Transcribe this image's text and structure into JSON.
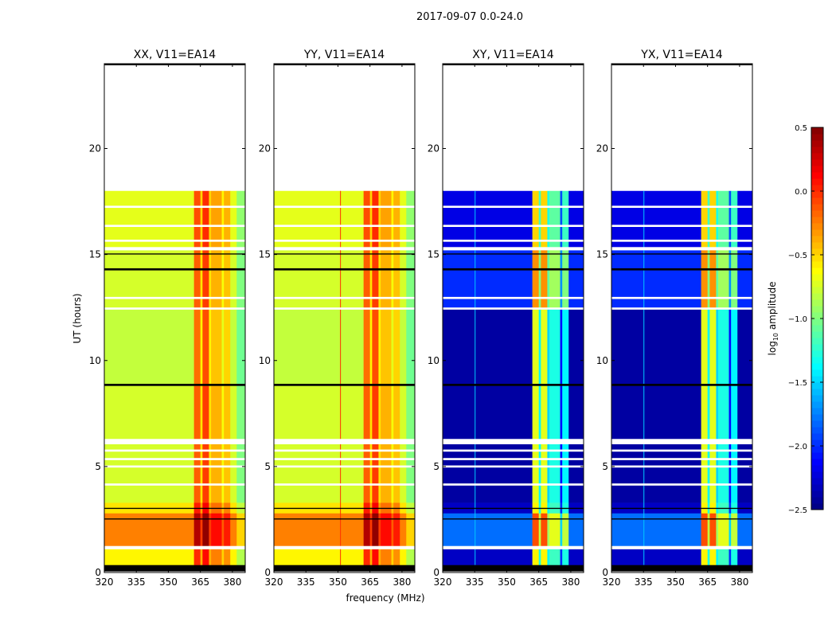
{
  "chart_data": {
    "type": "heatmap",
    "title": "2017-09-07 0.0-24.0",
    "xlabel": "frequency (MHz)",
    "ylabel": "UT (hours)",
    "xlim": [
      320,
      386
    ],
    "ylim": [
      0,
      24
    ],
    "xticks": [
      320,
      335,
      350,
      365,
      380
    ],
    "yticks": [
      0,
      5,
      10,
      15,
      20
    ],
    "panels": [
      {
        "title": "XX, V11=EA14",
        "kind": "parallel"
      },
      {
        "title": "YY, V11=EA14",
        "kind": "parallel"
      },
      {
        "title": "XY, V11=EA14",
        "kind": "cross"
      },
      {
        "title": "YX, V11=EA14",
        "kind": "cross"
      }
    ],
    "colorbar": {
      "label_main": "log",
      "label_sub": "10",
      "label_rest": " amplitude",
      "range": [
        -2.5,
        0.5
      ],
      "ticks": [
        "0.5",
        "0.0",
        "−0.5",
        "−1.0",
        "−1.5",
        "−2.0",
        "−2.5"
      ],
      "tick_values": [
        0.5,
        0.0,
        -0.5,
        -1.0,
        -1.5,
        -2.0,
        -2.5
      ],
      "colormap": "jet"
    },
    "time_segments": [
      {
        "start": 0.35,
        "end": 1.1,
        "parallel": -0.6,
        "cross": -2.3
      },
      {
        "start": 1.25,
        "end": 2.8,
        "parallel": -0.25,
        "cross": -1.8
      },
      {
        "start": 2.8,
        "end": 3.3,
        "parallel": -0.55,
        "cross": -2.3
      },
      {
        "start": 3.3,
        "end": 8.8,
        "parallel": -0.75,
        "cross": -2.4
      },
      {
        "start": 8.8,
        "end": 12.5,
        "parallel": -0.8,
        "cross": -2.4
      },
      {
        "start": 12.5,
        "end": 15.2,
        "parallel": -0.75,
        "cross": -2.0
      },
      {
        "start": 15.3,
        "end": 18.0,
        "parallel": -0.7,
        "cross": -2.2
      }
    ],
    "channel_bands": [
      {
        "start": 320,
        "end": 362,
        "parallel": 0.0,
        "cross": 0.0
      },
      {
        "start": 362,
        "end": 365,
        "parallel": 0.6,
        "cross": 1.7
      },
      {
        "start": 365,
        "end": 366,
        "parallel": 0.2,
        "cross": 1.0
      },
      {
        "start": 366,
        "end": 369,
        "parallel": 0.7,
        "cross": 1.7
      },
      {
        "start": 369,
        "end": 370,
        "parallel": 0.2,
        "cross": 0.9
      },
      {
        "start": 370,
        "end": 375,
        "parallel": 0.35,
        "cross": 1.1
      },
      {
        "start": 375,
        "end": 376,
        "parallel": 0.1,
        "cross": 0.3
      },
      {
        "start": 376,
        "end": 379,
        "parallel": 0.3,
        "cross": 1.0
      },
      {
        "start": 379,
        "end": 382,
        "parallel": 0.0,
        "cross": 0.0
      },
      {
        "start": 382,
        "end": 386,
        "parallel": -0.25,
        "cross": 0.0
      }
    ],
    "blank_intervals": [
      [
        1.1,
        1.25
      ],
      [
        4.1,
        4.2
      ],
      [
        4.95,
        5.05
      ],
      [
        5.3,
        5.4
      ],
      [
        5.7,
        5.8
      ],
      [
        6.05,
        6.3
      ],
      [
        12.4,
        12.5
      ],
      [
        12.9,
        13.0
      ],
      [
        15.2,
        15.35
      ],
      [
        15.6,
        15.7
      ],
      [
        16.3,
        16.4
      ],
      [
        17.2,
        17.3
      ]
    ],
    "flag_lines": [
      [
        0.05,
        0.35
      ],
      [
        2.5,
        2.55
      ],
      [
        3.0,
        3.05
      ],
      [
        8.8,
        8.9
      ],
      [
        14.25,
        14.35
      ],
      [
        15.0,
        15.05
      ]
    ]
  }
}
